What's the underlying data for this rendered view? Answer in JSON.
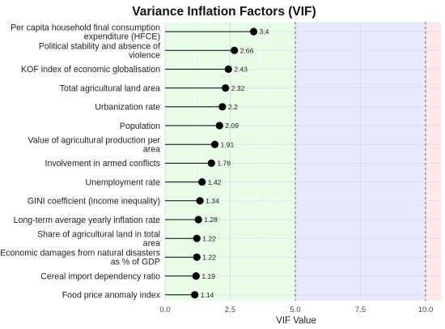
{
  "chart_data": {
    "type": "scatter",
    "style": "lollipop",
    "title": "Variance Inflation Factors (VIF)",
    "xlabel": "VIF Value",
    "ylabel": "",
    "xlim": [
      0,
      10.6
    ],
    "xticks": [
      "0.0",
      "2.5",
      "5.0",
      "7.5",
      "10.0"
    ],
    "grid": true,
    "legend": "none",
    "reference_lines": [
      5,
      10
    ],
    "background_bands": [
      {
        "from": 0,
        "to": 5,
        "color": "#e9fde9"
      },
      {
        "from": 5,
        "to": 10,
        "color": "#e9e9fd"
      },
      {
        "from": 10,
        "to": 10.6,
        "color": "#fde9e9"
      }
    ],
    "categories": [
      [
        "Per capita household final consumption",
        "expenditure (HFCE)"
      ],
      [
        "Political stability and absence of",
        "violence"
      ],
      [
        "KOF index of economic globalisation"
      ],
      [
        "Total agricultural land area"
      ],
      [
        "Urbanization rate"
      ],
      [
        "Population"
      ],
      [
        "Value of agricultural production per",
        "area"
      ],
      [
        "Involvement in armed conflicts"
      ],
      [
        "Unemployment rate"
      ],
      [
        "GINI coefficient (income inequality)"
      ],
      [
        "Long-term average yearly inflation rate"
      ],
      [
        "Share of agricultural land in total",
        "area"
      ],
      [
        "Economic damages from natural disasters",
        "as % of GDP"
      ],
      [
        "Cereal import dependency ratio"
      ],
      [
        "Food price anomaly index"
      ]
    ],
    "values": [
      3.4,
      2.66,
      2.43,
      2.32,
      2.2,
      2.09,
      1.91,
      1.78,
      1.42,
      1.34,
      1.28,
      1.22,
      1.22,
      1.19,
      1.14
    ],
    "value_labels": [
      "3.4",
      "2.66",
      "2.43",
      "2.32",
      "2.2",
      "2.09",
      "1.91",
      "1.78",
      "1.42",
      "1.34",
      "1.28",
      "1.22",
      "1.22",
      "1.19",
      "1.14"
    ],
    "colors": {
      "point": "#000000",
      "stem": "#000000",
      "refline": "#666666"
    }
  }
}
